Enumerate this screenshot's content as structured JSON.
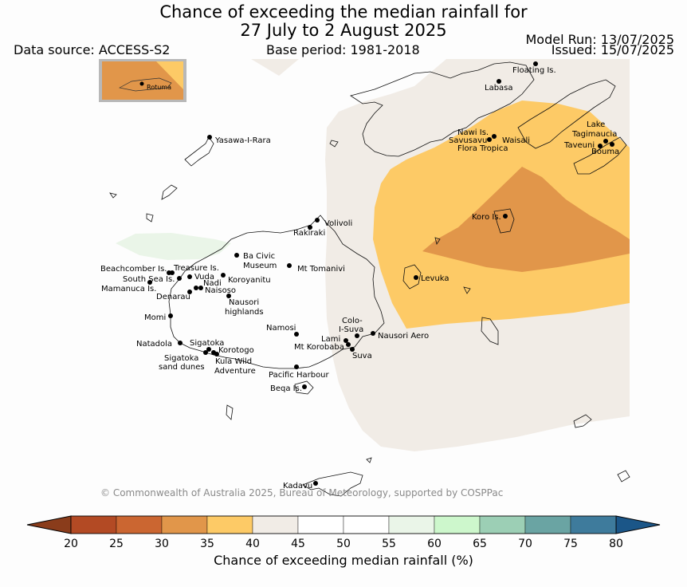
{
  "title_line1": "Chance of exceeding the median rainfall for",
  "title_line2": "27 July to 2 August 2025",
  "data_source": "Data source: ACCESS-S2",
  "base_period": "Base period: 1981-2018",
  "model_run": "Model Run: 13/07/2025",
  "issued": "Issued: 15/07/2025",
  "inset_label": "Rotuma",
  "copyright": "© Commonwealth of Australia 2025, Bureau of Meteorology, supported by COSPPac",
  "places": [
    {
      "name": "Floating Is."
    },
    {
      "name": "Labasa"
    },
    {
      "name": "Nawi Is."
    },
    {
      "name": "Savusavu"
    },
    {
      "name": "Waisali"
    },
    {
      "name": "Flora Tropica"
    },
    {
      "name": "Lake"
    },
    {
      "name": "Tagimaucia"
    },
    {
      "name": "Taveuni"
    },
    {
      "name": "Bouma"
    },
    {
      "name": "Yasawa-I-Rara"
    },
    {
      "name": "Koro Is."
    },
    {
      "name": "Volivoli"
    },
    {
      "name": "Rakiraki"
    },
    {
      "name": "Ba Civic"
    },
    {
      "name": "Museum"
    },
    {
      "name": "Mt Tomanivi"
    },
    {
      "name": "Beachcomber Is."
    },
    {
      "name": "Treasure Is."
    },
    {
      "name": "South Sea Is."
    },
    {
      "name": "Vuda"
    },
    {
      "name": "Koroyanitu"
    },
    {
      "name": "Nadi"
    },
    {
      "name": "Mamanuca Is."
    },
    {
      "name": "Naisoso"
    },
    {
      "name": "Denarau"
    },
    {
      "name": "Nausori"
    },
    {
      "name": "highlands"
    },
    {
      "name": "Levuka"
    },
    {
      "name": "Momi"
    },
    {
      "name": "Colo-"
    },
    {
      "name": "I-Suva"
    },
    {
      "name": "Namosi"
    },
    {
      "name": "Nausori Aero"
    },
    {
      "name": "Lami"
    },
    {
      "name": "Mt Korobaba"
    },
    {
      "name": "Suva"
    },
    {
      "name": "Natadola"
    },
    {
      "name": "Sigatoka"
    },
    {
      "name": "Korotogo"
    },
    {
      "name": "Sigatoka"
    },
    {
      "name": "sand dunes"
    },
    {
      "name": "Kula Wild"
    },
    {
      "name": "Adventure"
    },
    {
      "name": "Pacific Harbour"
    },
    {
      "name": "Beqa Is."
    },
    {
      "name": "Kadavu"
    }
  ],
  "colorbar": {
    "label": "Chance of exceeding median rainfall (%)",
    "ticks": [
      "20",
      "25",
      "30",
      "35",
      "40",
      "45",
      "50",
      "55",
      "60",
      "65",
      "70",
      "75",
      "80"
    ],
    "colors": [
      "#b34a24",
      "#cb6631",
      "#e1964a",
      "#fdca66",
      "#f1ece6",
      "#ffffff",
      "#ffffff",
      "#eaf5e8",
      "#cdf7cc",
      "#9ccfb5",
      "#6aa4a3",
      "#3e7b9c"
    ],
    "under_color": "#8a3c1b",
    "over_color": "#1b5688"
  },
  "legend_colors": {
    "cat_35_40": "#f1ece6",
    "cat_30_35": "#fdca66",
    "cat_25_30": "#e1964a",
    "cat_55_60": "#eaf5e8"
  }
}
